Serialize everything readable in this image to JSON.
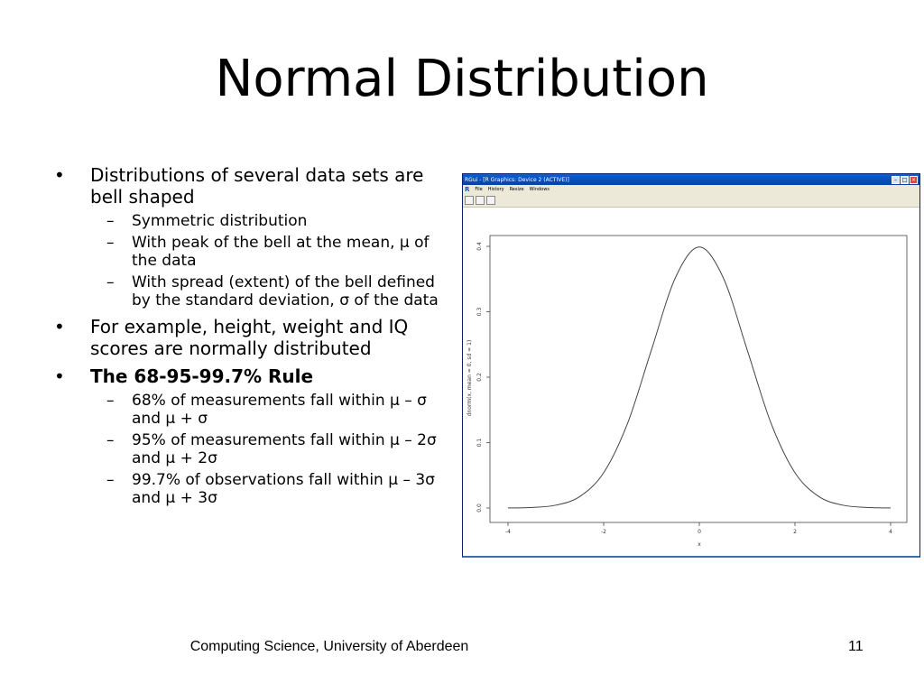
{
  "slide": {
    "title": "Normal Distribution",
    "bullets": [
      {
        "text": "Distributions of several data sets are bell shaped",
        "bold": false,
        "subitems": [
          "Symmetric distribution",
          "With peak of the bell at the mean, μ of the data",
          "With spread (extent) of the bell defined by the standard deviation, σ of the data"
        ]
      },
      {
        "text": "For example, height, weight and IQ scores are normally distributed",
        "bold": false,
        "subitems": []
      },
      {
        "text": "The 68-95-99.7% Rule",
        "bold": true,
        "subitems": [
          "68% of measurements fall within μ – σ and μ + σ",
          "95% of measurements fall within μ – 2σ  and μ + 2σ",
          "99.7% of observations fall within μ – 3σ and μ + 3σ"
        ]
      }
    ]
  },
  "rwindow": {
    "title": "RGui - [R Graphics: Device 2 (ACTIVE)]",
    "logo": "R",
    "menu": [
      "File",
      "History",
      "Resize",
      "Windows"
    ],
    "toolbar_icons": [
      "copy-icon",
      "print-icon",
      "save-icon"
    ],
    "colors": {
      "titlebar": "#0a5fd6",
      "chrome": "#ece9d8",
      "curve": "#444444"
    }
  },
  "chart_data": {
    "type": "line",
    "function": "dnorm(x, mean = 0, sd = 1)",
    "xlabel": "x",
    "ylabel": "dnorm(x, mean = 0, sd = 1)",
    "xlim": [
      -4,
      4
    ],
    "ylim": [
      0,
      0.4
    ],
    "xticks": [
      -4,
      -2,
      0,
      2,
      4
    ],
    "xtick_labels": [
      "-4",
      "-2",
      "0",
      "2",
      "4"
    ],
    "yticks": [
      0.0,
      0.1,
      0.2,
      0.3,
      0.4
    ],
    "ytick_labels": [
      "0.0",
      "0.1",
      "0.2",
      "0.3",
      "0.4"
    ],
    "series": [
      {
        "x": [
          -4,
          -3.5,
          -3,
          -2.5,
          -2,
          -1.5,
          -1,
          -0.5,
          0,
          0.5,
          1,
          1.5,
          2,
          2.5,
          3,
          3.5,
          4
        ],
        "y": [
          0.0001,
          0.0009,
          0.0044,
          0.0175,
          0.054,
          0.1295,
          0.242,
          0.3521,
          0.3989,
          0.3521,
          0.242,
          0.1295,
          0.054,
          0.0175,
          0.0044,
          0.0009,
          0.0001
        ]
      }
    ],
    "grid": false
  },
  "footer": {
    "left": "Computing Science, University of Aberdeen",
    "page": "11"
  }
}
